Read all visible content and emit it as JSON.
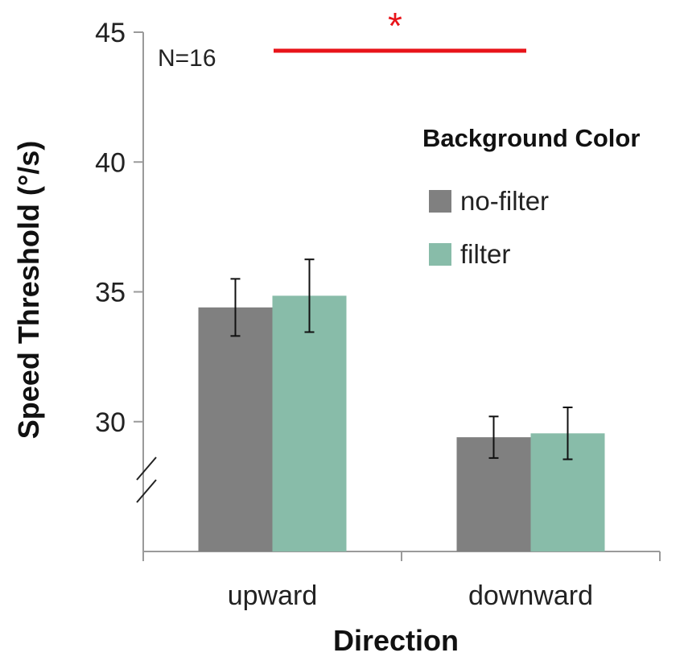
{
  "chart_data": {
    "type": "bar",
    "xlabel": "Direction",
    "ylabel": "Speed Threshold (°/s)",
    "categories": [
      "upward",
      "downward"
    ],
    "series": [
      {
        "name": "no-filter",
        "values": [
          34.4,
          29.4
        ],
        "errors": [
          1.1,
          0.8
        ],
        "color": "#808080"
      },
      {
        "name": "filter",
        "values": [
          34.85,
          29.55
        ],
        "errors": [
          1.4,
          1.0
        ],
        "color": "#88bca9"
      }
    ],
    "ylim": [
      25,
      45
    ],
    "yticks": [
      30,
      35,
      40,
      45
    ],
    "axis_break": true,
    "grid": false,
    "legend": {
      "title": "Background Color",
      "placement": "top-right"
    },
    "annotations": [
      {
        "text": "N=16"
      },
      {
        "text": "*",
        "type": "significance",
        "color": "#e8141a",
        "between": [
          "upward",
          "downward"
        ]
      }
    ]
  }
}
